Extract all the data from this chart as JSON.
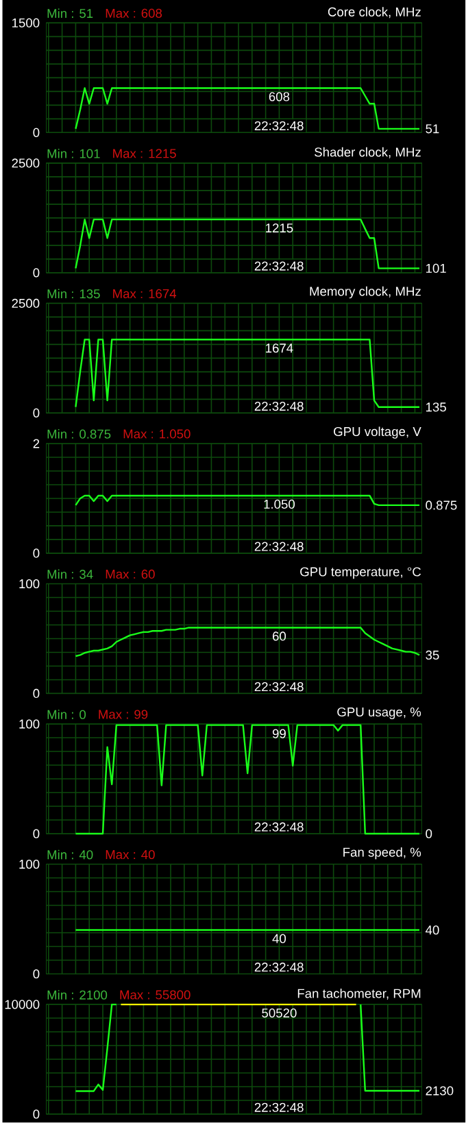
{
  "chart_data": [
    {
      "type": "line",
      "title": "Core clock, MHz",
      "categories": [
        null,
        null,
        null,
        null,
        null,
        null,
        null,
        null,
        null,
        null,
        null,
        null,
        null,
        null,
        null,
        null,
        null,
        null,
        null,
        null,
        null,
        null,
        null,
        null,
        null,
        null,
        null,
        null,
        null,
        null,
        null,
        null,
        null,
        null,
        null,
        null,
        null,
        null,
        null,
        null,
        null,
        null,
        null,
        null,
        null,
        null,
        null,
        null,
        null,
        null,
        null,
        null,
        null,
        null,
        null,
        null,
        null,
        null,
        null,
        null,
        null,
        null,
        null,
        null,
        null,
        null,
        null,
        null,
        null,
        null,
        null,
        null,
        null,
        null,
        null,
        null,
        null,
        null,
        null,
        null,
        null,
        null,
        null
      ],
      "series": [
        {
          "color": "#1aff1a",
          "values": [
            null,
            null,
            null,
            null,
            null,
            null,
            51,
            312,
            608,
            394,
            608,
            608,
            608,
            394,
            608,
            608,
            608,
            608,
            608,
            608,
            608,
            608,
            608,
            608,
            608,
            608,
            608,
            608,
            608,
            608,
            608,
            608,
            608,
            608,
            608,
            608,
            608,
            608,
            608,
            608,
            608,
            608,
            608,
            608,
            608,
            608,
            608,
            608,
            608,
            608,
            608,
            608,
            608,
            608,
            608,
            608,
            608,
            608,
            608,
            608,
            608,
            608,
            608,
            608,
            608,
            608,
            608,
            608,
            608,
            608,
            500,
            394,
            394,
            51,
            51,
            51,
            51,
            51,
            51,
            51,
            51,
            51,
            51
          ]
        }
      ],
      "ylim": [
        0,
        1500
      ],
      "yticks": [
        0,
        1500
      ],
      "grid": true,
      "tick_labels": "y",
      "marker": "none",
      "annotations": [
        "Min : 51",
        "Max : 608",
        "608",
        "51",
        "22:32:48"
      ]
    },
    {
      "type": "line",
      "title": "Shader clock, MHz",
      "categories": [
        null,
        null,
        null,
        null,
        null,
        null,
        null,
        null,
        null,
        null,
        null,
        null,
        null,
        null,
        null,
        null,
        null,
        null,
        null,
        null,
        null,
        null,
        null,
        null,
        null,
        null,
        null,
        null,
        null,
        null,
        null,
        null,
        null,
        null,
        null,
        null,
        null,
        null,
        null,
        null,
        null,
        null,
        null,
        null,
        null,
        null,
        null,
        null,
        null,
        null,
        null,
        null,
        null,
        null,
        null,
        null,
        null,
        null,
        null,
        null,
        null,
        null,
        null,
        null,
        null,
        null,
        null,
        null,
        null,
        null,
        null,
        null,
        null,
        null,
        null,
        null,
        null,
        null,
        null,
        null,
        null,
        null,
        null
      ],
      "series": [
        {
          "color": "#1aff1a",
          "values": [
            null,
            null,
            null,
            null,
            null,
            null,
            101,
            620,
            1215,
            790,
            1215,
            1215,
            1215,
            790,
            1215,
            1215,
            1215,
            1215,
            1215,
            1215,
            1215,
            1215,
            1215,
            1215,
            1215,
            1215,
            1215,
            1215,
            1215,
            1215,
            1215,
            1215,
            1215,
            1215,
            1215,
            1215,
            1215,
            1215,
            1215,
            1215,
            1215,
            1215,
            1215,
            1215,
            1215,
            1215,
            1215,
            1215,
            1215,
            1215,
            1215,
            1215,
            1215,
            1215,
            1215,
            1215,
            1215,
            1215,
            1215,
            1215,
            1215,
            1215,
            1215,
            1215,
            1215,
            1215,
            1215,
            1215,
            1215,
            1215,
            1000,
            790,
            790,
            101,
            101,
            101,
            101,
            101,
            101,
            101,
            101,
            101,
            101
          ]
        }
      ],
      "ylim": [
        0,
        2500
      ],
      "yticks": [
        0,
        2500
      ],
      "grid": true,
      "tick_labels": "y",
      "marker": "none",
      "annotations": [
        "Min : 101",
        "Max : 1215",
        "1215",
        "101",
        "22:32:48"
      ]
    },
    {
      "type": "line",
      "title": "Memory clock, MHz",
      "categories": [
        null,
        null,
        null,
        null,
        null,
        null,
        null,
        null,
        null,
        null,
        null,
        null,
        null,
        null,
        null,
        null,
        null,
        null,
        null,
        null,
        null,
        null,
        null,
        null,
        null,
        null,
        null,
        null,
        null,
        null,
        null,
        null,
        null,
        null,
        null,
        null,
        null,
        null,
        null,
        null,
        null,
        null,
        null,
        null,
        null,
        null,
        null,
        null,
        null,
        null,
        null,
        null,
        null,
        null,
        null,
        null,
        null,
        null,
        null,
        null,
        null,
        null,
        null,
        null,
        null,
        null,
        null,
        null,
        null,
        null,
        null,
        null,
        null,
        null,
        null,
        null,
        null,
        null,
        null,
        null,
        null,
        null,
        null
      ],
      "series": [
        {
          "color": "#1aff1a",
          "values": [
            null,
            null,
            null,
            null,
            null,
            null,
            135,
            950,
            1674,
            1674,
            285,
            1674,
            1674,
            285,
            1674,
            1674,
            1674,
            1674,
            1674,
            1674,
            1674,
            1674,
            1674,
            1674,
            1674,
            1674,
            1674,
            1674,
            1674,
            1674,
            1674,
            1674,
            1674,
            1674,
            1674,
            1674,
            1674,
            1674,
            1674,
            1674,
            1674,
            1674,
            1674,
            1674,
            1674,
            1674,
            1674,
            1674,
            1674,
            1674,
            1674,
            1674,
            1674,
            1674,
            1674,
            1674,
            1674,
            1674,
            1674,
            1674,
            1674,
            1674,
            1674,
            1674,
            1674,
            1674,
            1674,
            1674,
            1674,
            1674,
            1674,
            1674,
            285,
            135,
            135,
            135,
            135,
            135,
            135,
            135,
            135,
            135,
            135
          ]
        }
      ],
      "ylim": [
        0,
        2500
      ],
      "yticks": [
        0,
        2500
      ],
      "grid": true,
      "tick_labels": "y",
      "marker": "none",
      "annotations": [
        "Min : 135",
        "Max : 1674",
        "1674",
        "135",
        "22:32:48"
      ]
    },
    {
      "type": "line",
      "title": "GPU voltage, V",
      "categories": [
        null,
        null,
        null,
        null,
        null,
        null,
        null,
        null,
        null,
        null,
        null,
        null,
        null,
        null,
        null,
        null,
        null,
        null,
        null,
        null,
        null,
        null,
        null,
        null,
        null,
        null,
        null,
        null,
        null,
        null,
        null,
        null,
        null,
        null,
        null,
        null,
        null,
        null,
        null,
        null,
        null,
        null,
        null,
        null,
        null,
        null,
        null,
        null,
        null,
        null,
        null,
        null,
        null,
        null,
        null,
        null,
        null,
        null,
        null,
        null,
        null,
        null,
        null,
        null,
        null,
        null,
        null,
        null,
        null,
        null,
        null,
        null,
        null,
        null,
        null,
        null,
        null,
        null,
        null,
        null,
        null,
        null,
        null
      ],
      "series": [
        {
          "color": "#1aff1a",
          "values": [
            null,
            null,
            null,
            null,
            null,
            null,
            0.875,
            1.0,
            1.05,
            1.05,
            0.95,
            1.05,
            1.05,
            0.95,
            1.05,
            1.05,
            1.05,
            1.05,
            1.05,
            1.05,
            1.05,
            1.05,
            1.05,
            1.05,
            1.05,
            1.05,
            1.05,
            1.05,
            1.05,
            1.05,
            1.05,
            1.05,
            1.05,
            1.05,
            1.05,
            1.05,
            1.05,
            1.05,
            1.05,
            1.05,
            1.05,
            1.05,
            1.05,
            1.05,
            1.05,
            1.05,
            1.05,
            1.05,
            1.05,
            1.05,
            1.05,
            1.05,
            1.05,
            1.05,
            1.05,
            1.05,
            1.05,
            1.05,
            1.05,
            1.05,
            1.05,
            1.05,
            1.05,
            1.05,
            1.05,
            1.05,
            1.05,
            1.05,
            1.05,
            1.05,
            1.05,
            1.05,
            0.9,
            0.875,
            0.875,
            0.875,
            0.875,
            0.875,
            0.875,
            0.875,
            0.875,
            0.875,
            0.875
          ]
        }
      ],
      "ylim": [
        0,
        2
      ],
      "yticks": [
        0,
        2
      ],
      "grid": true,
      "tick_labels": "y",
      "marker": "none",
      "annotations": [
        "Min : 0.875",
        "Max : 1.050",
        "1.050",
        "0.875",
        "22:32:48"
      ]
    },
    {
      "type": "line",
      "title": "GPU temperature, °C",
      "categories": [
        null,
        null,
        null,
        null,
        null,
        null,
        null,
        null,
        null,
        null,
        null,
        null,
        null,
        null,
        null,
        null,
        null,
        null,
        null,
        null,
        null,
        null,
        null,
        null,
        null,
        null,
        null,
        null,
        null,
        null,
        null,
        null,
        null,
        null,
        null,
        null,
        null,
        null,
        null,
        null,
        null,
        null,
        null,
        null,
        null,
        null,
        null,
        null,
        null,
        null,
        null,
        null,
        null,
        null,
        null,
        null,
        null,
        null,
        null,
        null,
        null,
        null,
        null,
        null,
        null,
        null,
        null,
        null,
        null,
        null,
        null,
        null,
        null,
        null,
        null,
        null,
        null,
        null,
        null,
        null,
        null,
        null,
        null
      ],
      "series": [
        {
          "color": "#1aff1a",
          "values": [
            null,
            null,
            null,
            null,
            null,
            null,
            34,
            35,
            37,
            38,
            39,
            39,
            40,
            41,
            43,
            47,
            49,
            51,
            53,
            54,
            55,
            56,
            56,
            57,
            57,
            57,
            58,
            58,
            58,
            59,
            59,
            60,
            60,
            60,
            60,
            60,
            60,
            60,
            60,
            60,
            60,
            60,
            60,
            60,
            60,
            60,
            60,
            60,
            60,
            60,
            60,
            60,
            60,
            60,
            60,
            60,
            60,
            60,
            60,
            60,
            60,
            60,
            60,
            60,
            60,
            60,
            60,
            60,
            60,
            60,
            55,
            52,
            49,
            47,
            45,
            43,
            41,
            40,
            39,
            38,
            38,
            37,
            35
          ]
        }
      ],
      "ylim": [
        0,
        100
      ],
      "yticks": [
        0,
        100
      ],
      "grid": true,
      "tick_labels": "y",
      "marker": "none",
      "annotations": [
        "Min : 34",
        "Max : 60",
        "60",
        "35",
        "22:32:48"
      ]
    },
    {
      "type": "line",
      "title": "GPU usage, %",
      "categories": [
        null,
        null,
        null,
        null,
        null,
        null,
        null,
        null,
        null,
        null,
        null,
        null,
        null,
        null,
        null,
        null,
        null,
        null,
        null,
        null,
        null,
        null,
        null,
        null,
        null,
        null,
        null,
        null,
        null,
        null,
        null,
        null,
        null,
        null,
        null,
        null,
        null,
        null,
        null,
        null,
        null,
        null,
        null,
        null,
        null,
        null,
        null,
        null,
        null,
        null,
        null,
        null,
        null,
        null,
        null,
        null,
        null,
        null,
        null,
        null,
        null,
        null,
        null,
        null,
        null,
        null,
        null,
        null,
        null,
        null,
        null,
        null,
        null,
        null,
        null,
        null,
        null,
        null,
        null,
        null,
        null,
        null,
        null
      ],
      "series": [
        {
          "color": "#1aff1a",
          "values": [
            null,
            null,
            null,
            null,
            null,
            null,
            0,
            0,
            0,
            0,
            0,
            0,
            0,
            79,
            45,
            99,
            99,
            99,
            99,
            99,
            99,
            99,
            99,
            99,
            99,
            44,
            99,
            99,
            99,
            99,
            99,
            99,
            99,
            99,
            53,
            99,
            99,
            99,
            99,
            99,
            99,
            99,
            99,
            99,
            55,
            99,
            99,
            99,
            99,
            99,
            99,
            99,
            99,
            99,
            62,
            99,
            99,
            99,
            99,
            99,
            99,
            99,
            99,
            99,
            94,
            99,
            99,
            99,
            99,
            99,
            0,
            0,
            0,
            0,
            0,
            0,
            0,
            0,
            0,
            0,
            0,
            0,
            0
          ]
        }
      ],
      "ylim": [
        0,
        100
      ],
      "yticks": [
        0,
        100
      ],
      "grid": true,
      "tick_labels": "y",
      "marker": "none",
      "annotations": [
        "Min : 0",
        "Max : 99",
        "99",
        "0",
        "22:32:48"
      ]
    },
    {
      "type": "line",
      "title": "Fan speed, %",
      "categories": [
        null,
        null,
        null,
        null,
        null,
        null,
        null,
        null,
        null,
        null,
        null,
        null,
        null,
        null,
        null,
        null,
        null,
        null,
        null,
        null,
        null,
        null,
        null,
        null,
        null,
        null,
        null,
        null,
        null,
        null,
        null,
        null,
        null,
        null,
        null,
        null,
        null,
        null,
        null,
        null,
        null,
        null,
        null,
        null,
        null,
        null,
        null,
        null,
        null,
        null,
        null,
        null,
        null,
        null,
        null,
        null,
        null,
        null,
        null,
        null,
        null,
        null,
        null,
        null,
        null,
        null,
        null,
        null,
        null,
        null,
        null,
        null,
        null,
        null,
        null,
        null,
        null,
        null,
        null,
        null,
        null,
        null,
        null
      ],
      "series": [
        {
          "color": "#1aff1a",
          "values": [
            null,
            null,
            null,
            null,
            null,
            null,
            40,
            40,
            40,
            40,
            40,
            40,
            40,
            40,
            40,
            40,
            40,
            40,
            40,
            40,
            40,
            40,
            40,
            40,
            40,
            40,
            40,
            40,
            40,
            40,
            40,
            40,
            40,
            40,
            40,
            40,
            40,
            40,
            40,
            40,
            40,
            40,
            40,
            40,
            40,
            40,
            40,
            40,
            40,
            40,
            40,
            40,
            40,
            40,
            40,
            40,
            40,
            40,
            40,
            40,
            40,
            40,
            40,
            40,
            40,
            40,
            40,
            40,
            40,
            40,
            40,
            40,
            40,
            40,
            40,
            40,
            40,
            40,
            40,
            40,
            40,
            40,
            40
          ]
        }
      ],
      "ylim": [
        0,
        100
      ],
      "yticks": [
        0,
        100
      ],
      "grid": true,
      "tick_labels": "y",
      "marker": "none",
      "annotations": [
        "Min : 40",
        "Max : 40",
        "40",
        "40",
        "22:32:48"
      ]
    },
    {
      "type": "line",
      "title": "Fan tachometer, RPM",
      "categories": [
        null,
        null,
        null,
        null,
        null,
        null,
        null,
        null,
        null,
        null,
        null,
        null,
        null,
        null,
        null,
        null,
        null,
        null,
        null,
        null,
        null,
        null,
        null,
        null,
        null,
        null,
        null,
        null,
        null,
        null,
        null,
        null,
        null,
        null,
        null,
        null,
        null,
        null,
        null,
        null,
        null,
        null,
        null,
        null,
        null,
        null,
        null,
        null,
        null,
        null,
        null,
        null,
        null,
        null,
        null,
        null,
        null,
        null,
        null,
        null,
        null,
        null,
        null,
        null,
        null,
        null,
        null,
        null,
        null,
        null,
        null,
        null,
        null,
        null,
        null,
        null,
        null,
        null,
        null,
        null,
        null,
        null,
        null
      ],
      "series": [
        {
          "color": "#1aff1a",
          "values": [
            null,
            null,
            null,
            null,
            null,
            null,
            2100,
            2100,
            2100,
            2100,
            2100,
            2700,
            2200,
            6000,
            10000,
            10000,
            null,
            null,
            null,
            null,
            null,
            null,
            null,
            null,
            null,
            null,
            null,
            null,
            null,
            null,
            null,
            null,
            null,
            null,
            null,
            null,
            null,
            null,
            null,
            null,
            null,
            null,
            null,
            null,
            null,
            null,
            null,
            null,
            null,
            null,
            null,
            null,
            null,
            null,
            null,
            null,
            null,
            null,
            null,
            null,
            null,
            null,
            null,
            null,
            null,
            null,
            null,
            null,
            null,
            10000,
            2130,
            2130,
            2130,
            2130,
            2130,
            2130,
            2130,
            2130,
            2130,
            2130,
            2130,
            2130,
            2130
          ]
        },
        {
          "color": "#ffff00",
          "values": [
            null,
            null,
            null,
            null,
            null,
            null,
            null,
            null,
            null,
            null,
            null,
            null,
            null,
            null,
            null,
            null,
            10000,
            10000,
            10000,
            10000,
            10000,
            10000,
            10000,
            10000,
            10000,
            10000,
            10000,
            10000,
            10000,
            10000,
            10000,
            10000,
            10000,
            10000,
            10000,
            10000,
            10000,
            10000,
            10000,
            10000,
            10000,
            10000,
            10000,
            10000,
            10000,
            10000,
            10000,
            10000,
            10000,
            10000,
            10000,
            10000,
            10000,
            10000,
            10000,
            10000,
            10000,
            10000,
            10000,
            10000,
            10000,
            10000,
            10000,
            10000,
            10000,
            10000,
            10000,
            10000,
            10000,
            null,
            null,
            null,
            null,
            null,
            null,
            null,
            null,
            null,
            null,
            null,
            null,
            null,
            null
          ]
        }
      ],
      "ylim": [
        0,
        10000
      ],
      "yticks": [
        0,
        10000
      ],
      "grid": true,
      "tick_labels": "y",
      "marker": "none",
      "annotations": [
        "Min : 2100",
        "Max : 55800",
        "50520",
        "2130",
        "22:32:48"
      ]
    }
  ]
}
